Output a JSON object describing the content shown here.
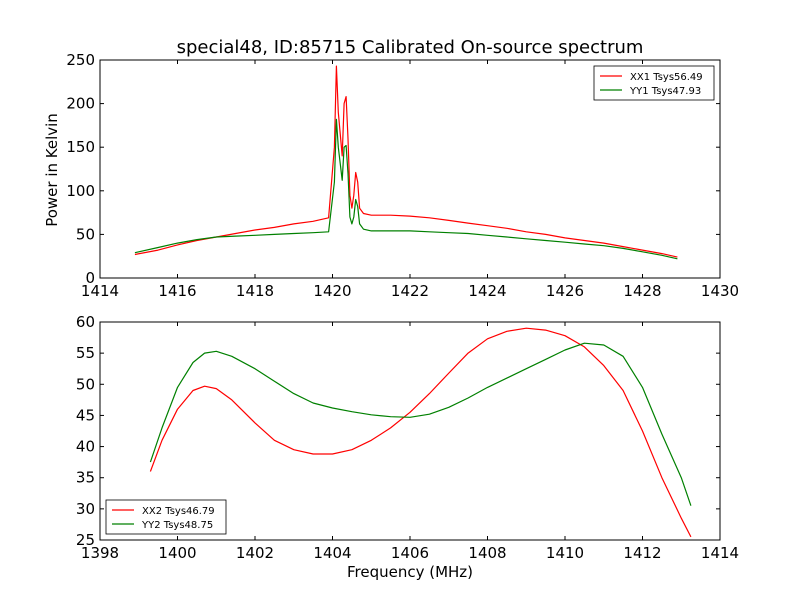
{
  "chart_data": [
    {
      "type": "line",
      "title": "special48, ID:85715 Calibrated On-source spectrum",
      "xlabel": "",
      "ylabel": "Power in Kelvin",
      "xlim": [
        1414,
        1430
      ],
      "ylim": [
        0,
        250
      ],
      "xticks": [
        1414,
        1416,
        1418,
        1420,
        1422,
        1424,
        1426,
        1428,
        1430
      ],
      "yticks": [
        0,
        50,
        100,
        150,
        200,
        250
      ],
      "legend_position": "upper right",
      "series": [
        {
          "name": "XX1 Tsys56.49",
          "color": "#ff0000",
          "x": [
            1414.9,
            1415.5,
            1416.0,
            1416.5,
            1417.0,
            1417.5,
            1418.0,
            1418.5,
            1419.0,
            1419.5,
            1419.9,
            1420.05,
            1420.1,
            1420.15,
            1420.25,
            1420.3,
            1420.35,
            1420.4,
            1420.45,
            1420.5,
            1420.55,
            1420.6,
            1420.65,
            1420.7,
            1420.8,
            1421.0,
            1421.5,
            1422.0,
            1422.5,
            1423.0,
            1423.5,
            1424.0,
            1424.5,
            1425.0,
            1425.5,
            1426.0,
            1426.5,
            1427.0,
            1427.5,
            1428.0,
            1428.5,
            1428.9
          ],
          "y": [
            27,
            32,
            38,
            43,
            47,
            51,
            55,
            58,
            62,
            65,
            69,
            150,
            243,
            190,
            140,
            200,
            208,
            160,
            95,
            80,
            95,
            121,
            110,
            80,
            74,
            72,
            72,
            71,
            69,
            66,
            63,
            60,
            57,
            53,
            50,
            46,
            43,
            40,
            36,
            32,
            28,
            24
          ]
        },
        {
          "name": "YY1 Tsys47.93",
          "color": "#008000",
          "x": [
            1414.9,
            1415.5,
            1416.0,
            1416.5,
            1417.0,
            1417.5,
            1418.0,
            1418.5,
            1419.0,
            1419.5,
            1419.9,
            1420.05,
            1420.1,
            1420.15,
            1420.25,
            1420.3,
            1420.35,
            1420.4,
            1420.45,
            1420.5,
            1420.55,
            1420.6,
            1420.65,
            1420.7,
            1420.8,
            1421.0,
            1421.5,
            1422.0,
            1422.5,
            1423.0,
            1423.5,
            1424.0,
            1424.5,
            1425.0,
            1425.5,
            1426.0,
            1426.5,
            1427.0,
            1427.5,
            1428.0,
            1428.5,
            1428.9
          ],
          "y": [
            29,
            35,
            40,
            44,
            47,
            48,
            49,
            50,
            51,
            52,
            53,
            110,
            182,
            150,
            112,
            150,
            152,
            120,
            70,
            62,
            70,
            90,
            82,
            62,
            56,
            54,
            54,
            54,
            53,
            52,
            51,
            49,
            47,
            45,
            43,
            41,
            39,
            37,
            34,
            30,
            26,
            22
          ]
        }
      ]
    },
    {
      "type": "line",
      "title": "",
      "xlabel": "Frequency (MHz)",
      "ylabel": "",
      "xlim": [
        1398,
        1414
      ],
      "ylim": [
        25,
        60
      ],
      "xticks": [
        1398,
        1400,
        1402,
        1404,
        1406,
        1408,
        1410,
        1412,
        1414
      ],
      "yticks": [
        25,
        30,
        35,
        40,
        45,
        50,
        55,
        60
      ],
      "legend_position": "lower left",
      "series": [
        {
          "name": "XX2 Tsys46.79",
          "color": "#ff0000",
          "x": [
            1399.3,
            1399.6,
            1400.0,
            1400.4,
            1400.7,
            1401.0,
            1401.4,
            1402.0,
            1402.5,
            1403.0,
            1403.5,
            1404.0,
            1404.5,
            1405.0,
            1405.5,
            1406.0,
            1406.5,
            1407.0,
            1407.5,
            1408.0,
            1408.5,
            1409.0,
            1409.5,
            1410.0,
            1410.5,
            1411.0,
            1411.5,
            1412.0,
            1412.5,
            1413.0,
            1413.25
          ],
          "y": [
            36,
            41,
            46,
            49,
            49.7,
            49.3,
            47.5,
            43.8,
            41,
            39.5,
            38.8,
            38.8,
            39.5,
            41,
            43,
            45.5,
            48.5,
            51.8,
            55,
            57.3,
            58.5,
            59,
            58.7,
            57.8,
            56,
            53,
            49,
            42.5,
            35,
            28.5,
            25.5
          ]
        },
        {
          "name": "YY2 Tsys48.75",
          "color": "#008000",
          "x": [
            1399.3,
            1399.6,
            1400.0,
            1400.4,
            1400.7,
            1401.0,
            1401.4,
            1402.0,
            1402.5,
            1403.0,
            1403.5,
            1404.0,
            1404.5,
            1405.0,
            1405.5,
            1406.0,
            1406.5,
            1407.0,
            1407.5,
            1408.0,
            1408.5,
            1409.0,
            1409.5,
            1410.0,
            1410.5,
            1411.0,
            1411.5,
            1412.0,
            1412.5,
            1413.0,
            1413.25
          ],
          "y": [
            37.5,
            43,
            49.5,
            53.5,
            55,
            55.3,
            54.5,
            52.5,
            50.5,
            48.5,
            47,
            46.2,
            45.6,
            45.1,
            44.8,
            44.7,
            45.2,
            46.3,
            47.8,
            49.5,
            51,
            52.5,
            54,
            55.5,
            56.6,
            56.3,
            54.5,
            49.5,
            42,
            35,
            30.5
          ]
        }
      ]
    }
  ]
}
